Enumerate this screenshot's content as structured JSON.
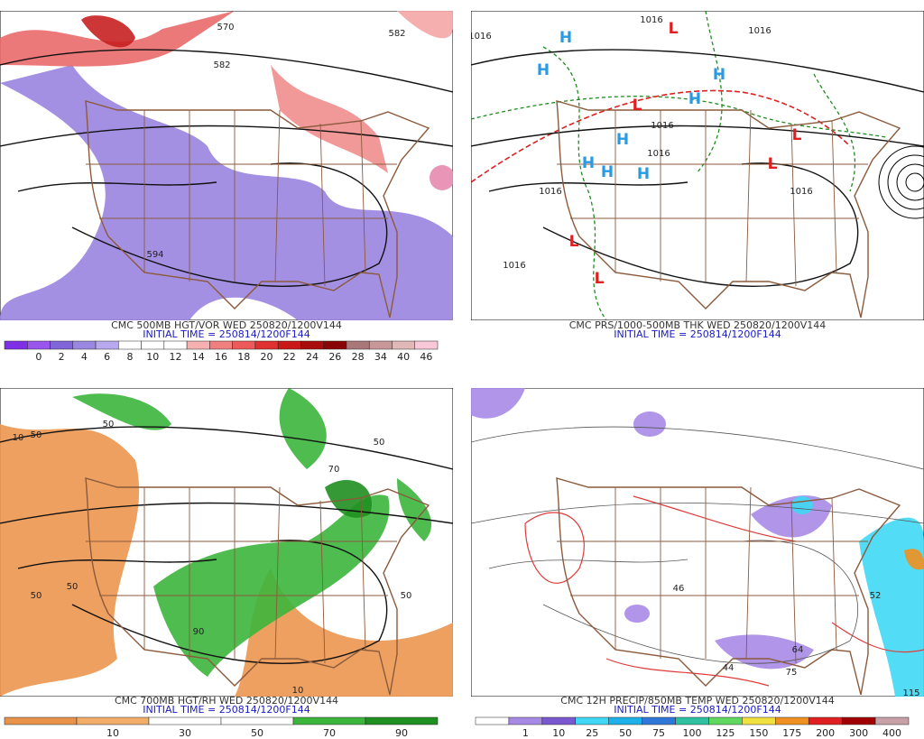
{
  "panels": [
    {
      "caption": "CMC 500MB HGT/VOR WED 250820/1200V144",
      "initial_time": "INITIAL TIME = 250814/1200F144",
      "colorbar": {
        "labels": [
          0,
          2,
          4,
          6,
          8,
          10,
          12,
          14,
          16,
          18,
          20,
          22,
          24,
          26,
          28,
          34,
          40,
          46
        ],
        "colors": [
          "#7f2fe6",
          "#9a55ec",
          "#8066d8",
          "#9a88e0",
          "#b8a8ee",
          "#ffffff",
          "#ffffff",
          "#ffffff",
          "#f6b0b0",
          "#f08080",
          "#ee5a5a",
          "#e03030",
          "#c81818",
          "#a80c0c",
          "#8a0606",
          "#aa7878",
          "#c89898",
          "#e0b8b8",
          "#f8c8d8"
        ]
      },
      "map_labels": [
        "594",
        "582",
        "570",
        "582"
      ]
    },
    {
      "caption": "CMC PRS/1000-500MB THK WED 250820/1200V144",
      "initial_time": "INITIAL TIME = 250814/1200F144",
      "map_labels": [
        "H",
        "H",
        "H",
        "H",
        "H",
        "H",
        "H",
        "H",
        "L",
        "L",
        "L",
        "L",
        "L",
        "L",
        "1016",
        "1016",
        "1016",
        "1016",
        "1016",
        "1016",
        "1016",
        "1016"
      ]
    },
    {
      "caption": "CMC 700MB HGT/RH WED 250820/1200V144",
      "initial_time": "INITIAL TIME = 250814/1200F144",
      "colorbar": {
        "labels": [
          10,
          30,
          50,
          70,
          90
        ],
        "colors": [
          "#e8924a",
          "#f2ad6a",
          "#ffffff",
          "#ffffff",
          "#3cb53c",
          "#1f8f1f"
        ]
      },
      "map_labels": [
        "50",
        "50",
        "10",
        "50",
        "10",
        "50",
        "50",
        "70",
        "50",
        "90"
      ]
    },
    {
      "caption": "CMC 12H PRECIP/850MB TEMP WED 250820/1200V144",
      "initial_time": "INITIAL TIME = 250814/1200F144",
      "colorbar": {
        "labels": [
          1,
          10,
          25,
          50,
          75,
          100,
          125,
          150,
          175,
          200,
          300,
          400
        ],
        "colors": [
          "#ffffff",
          "#a78ae6",
          "#7a58d0",
          "#40d8f4",
          "#1eb0e8",
          "#2f78d8",
          "#2fc0a0",
          "#60d860",
          "#f0e040",
          "#f09020",
          "#e02020",
          "#a00000",
          "#c8a0a8"
        ]
      },
      "map_labels": [
        "46",
        "75",
        "44",
        "64",
        "52",
        "115"
      ]
    }
  ]
}
